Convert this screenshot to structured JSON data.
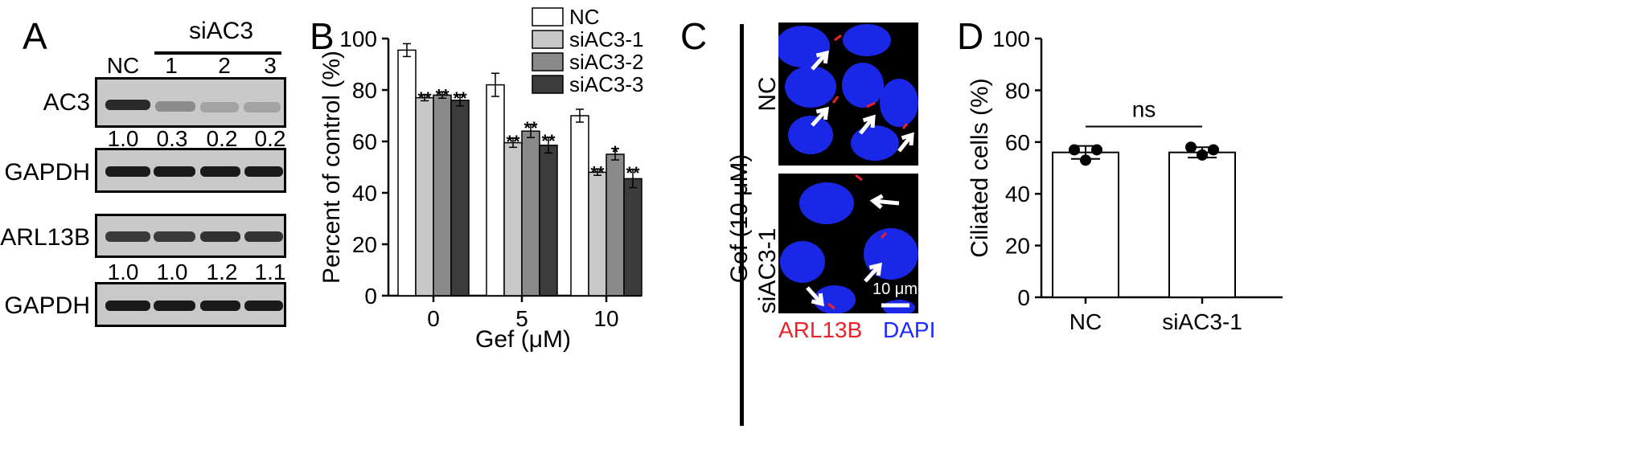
{
  "panels": {
    "A": "A",
    "B": "B",
    "C": "C",
    "D": "D"
  },
  "blot": {
    "group_label": "siAC3",
    "lanes": [
      "NC",
      "1",
      "2",
      "3"
    ],
    "rows": [
      {
        "label": "AC3",
        "band_intensity": [
          1.0,
          0.3,
          0.2,
          0.2
        ]
      },
      {
        "label": "GAPDH",
        "band_intensity": [
          1.0,
          1.0,
          1.0,
          1.0
        ]
      },
      {
        "label": "ARL13B",
        "band_intensity": [
          1.0,
          1.0,
          1.2,
          1.1
        ]
      },
      {
        "label": "GAPDH",
        "band_intensity": [
          1.0,
          1.0,
          1.0,
          1.0
        ]
      }
    ],
    "ratios_ac3": [
      "1.0",
      "0.3",
      "0.2",
      "0.2"
    ],
    "ratios_arl13b": [
      "1.0",
      "1.0",
      "1.2",
      "1.1"
    ]
  },
  "micro": {
    "side_label": "Gef (10 μM)",
    "panels": [
      "NC",
      "siAC3-1"
    ],
    "scale_label": "10 μm",
    "stain1": "ARL13B",
    "stain2": "DAPI",
    "stain1_color": "#e8232a",
    "stain2_color": "#1e2bff"
  },
  "chart_data": [
    {
      "type": "bar",
      "ylabel": "Percent of control (%)",
      "xlabel": "Gef (μM)",
      "categories": [
        "0",
        "5",
        "10"
      ],
      "ylim": [
        0,
        100
      ],
      "yticks": [
        0,
        20,
        40,
        60,
        80,
        100
      ],
      "series": [
        {
          "name": "NC",
          "color": "#ffffff",
          "values": [
            95.5,
            82,
            70
          ],
          "err": [
            2.5,
            4.5,
            2.5
          ],
          "sig": [
            "",
            "",
            ""
          ]
        },
        {
          "name": "siAC3-1",
          "color": "#c8c8c8",
          "values": [
            77,
            59.5,
            48
          ],
          "err": [
            1.2,
            1.8,
            1.2
          ],
          "sig": [
            "**",
            "**",
            "**"
          ]
        },
        {
          "name": "siAC3-2",
          "color": "#8a8a8a",
          "values": [
            78,
            64,
            55
          ],
          "err": [
            1.2,
            2.5,
            2.2
          ],
          "sig": [
            "**",
            "**",
            "*"
          ]
        },
        {
          "name": "siAC3-3",
          "color": "#3c3c3c",
          "values": [
            76,
            58.5,
            45.5
          ],
          "err": [
            2.2,
            3,
            3.5
          ],
          "sig": [
            "**",
            "**",
            "**"
          ]
        }
      ]
    },
    {
      "type": "bar",
      "ylabel": "Ciliated cells (%)",
      "categories": [
        "NC",
        "siAC3-1"
      ],
      "ylim": [
        0,
        100
      ],
      "yticks": [
        0,
        20,
        40,
        60,
        80,
        100
      ],
      "values": [
        56,
        56
      ],
      "err": [
        2.5,
        2
      ],
      "points": [
        [
          57,
          53,
          57
        ],
        [
          58,
          55,
          57
        ]
      ],
      "annotation": "ns"
    }
  ]
}
